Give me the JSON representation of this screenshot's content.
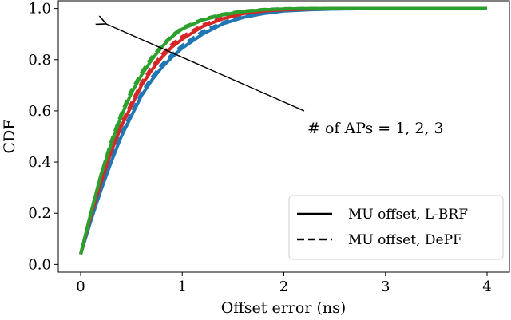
{
  "chart_data": {
    "type": "line",
    "title": "",
    "xlabel": "Offset error (ns)",
    "ylabel": "CDF",
    "xlim": [
      -0.22,
      4.22
    ],
    "ylim": [
      -0.03,
      1.03
    ],
    "xticks": [
      0,
      1,
      2,
      3,
      4
    ],
    "xtick_labels": [
      "0",
      "1",
      "2",
      "3",
      "4"
    ],
    "yticks": [
      0.0,
      0.2,
      0.4,
      0.6,
      0.8,
      1.0
    ],
    "ytick_labels": [
      "0.0",
      "0.2",
      "0.4",
      "0.6",
      "0.8",
      "1.0"
    ],
    "grid": false,
    "legend_position": "lower-right",
    "legend": [
      {
        "label": "MU offset, L-BRF",
        "style": "solid"
      },
      {
        "label": "MU offset, DePF",
        "style": "dashed"
      }
    ],
    "annotation": {
      "text": "# of APs = 1, 2, 3",
      "arrow_from": [
        2.2,
        0.6
      ],
      "arrow_to": [
        0.25,
        0.94
      ]
    },
    "colors": {
      "blue": "#1f77b4",
      "red": "#d62728",
      "green": "#2ca02c"
    },
    "x": [
      0,
      0.1,
      0.2,
      0.3,
      0.4,
      0.5,
      0.6,
      0.7,
      0.8,
      0.9,
      1.0,
      1.2,
      1.4,
      1.6,
      1.8,
      2.0,
      2.25,
      2.5,
      3.0,
      3.5,
      4.0
    ],
    "series": [
      {
        "color": "blue",
        "style": "solid",
        "values": [
          0.04,
          0.17,
          0.29,
          0.4,
          0.5,
          0.58,
          0.66,
          0.72,
          0.77,
          0.81,
          0.845,
          0.9,
          0.94,
          0.965,
          0.98,
          0.99,
          0.995,
          0.998,
          1.0,
          1.0,
          1.0
        ]
      },
      {
        "color": "blue",
        "style": "dashed",
        "values": [
          0.04,
          0.18,
          0.3,
          0.41,
          0.51,
          0.59,
          0.67,
          0.73,
          0.78,
          0.82,
          0.855,
          0.91,
          0.945,
          0.97,
          0.985,
          0.992,
          0.996,
          0.998,
          1.0,
          1.0,
          1.0
        ]
      },
      {
        "color": "red",
        "style": "solid",
        "values": [
          0.04,
          0.19,
          0.32,
          0.44,
          0.54,
          0.62,
          0.7,
          0.76,
          0.81,
          0.85,
          0.88,
          0.93,
          0.96,
          0.98,
          0.99,
          0.995,
          0.998,
          1.0,
          1.0,
          1.0,
          1.0
        ]
      },
      {
        "color": "red",
        "style": "dashed",
        "values": [
          0.04,
          0.19,
          0.33,
          0.45,
          0.55,
          0.63,
          0.71,
          0.77,
          0.82,
          0.86,
          0.89,
          0.935,
          0.965,
          0.982,
          0.991,
          0.996,
          0.998,
          1.0,
          1.0,
          1.0,
          1.0
        ]
      },
      {
        "color": "green",
        "style": "solid",
        "values": [
          0.04,
          0.2,
          0.35,
          0.47,
          0.58,
          0.67,
          0.74,
          0.8,
          0.85,
          0.89,
          0.92,
          0.955,
          0.975,
          0.988,
          0.995,
          0.998,
          1.0,
          1.0,
          1.0,
          1.0,
          1.0
        ]
      },
      {
        "color": "green",
        "style": "dashed",
        "values": [
          0.04,
          0.2,
          0.35,
          0.48,
          0.59,
          0.68,
          0.75,
          0.81,
          0.855,
          0.895,
          0.925,
          0.958,
          0.978,
          0.99,
          0.996,
          0.999,
          1.0,
          1.0,
          1.0,
          1.0,
          1.0
        ]
      }
    ]
  }
}
